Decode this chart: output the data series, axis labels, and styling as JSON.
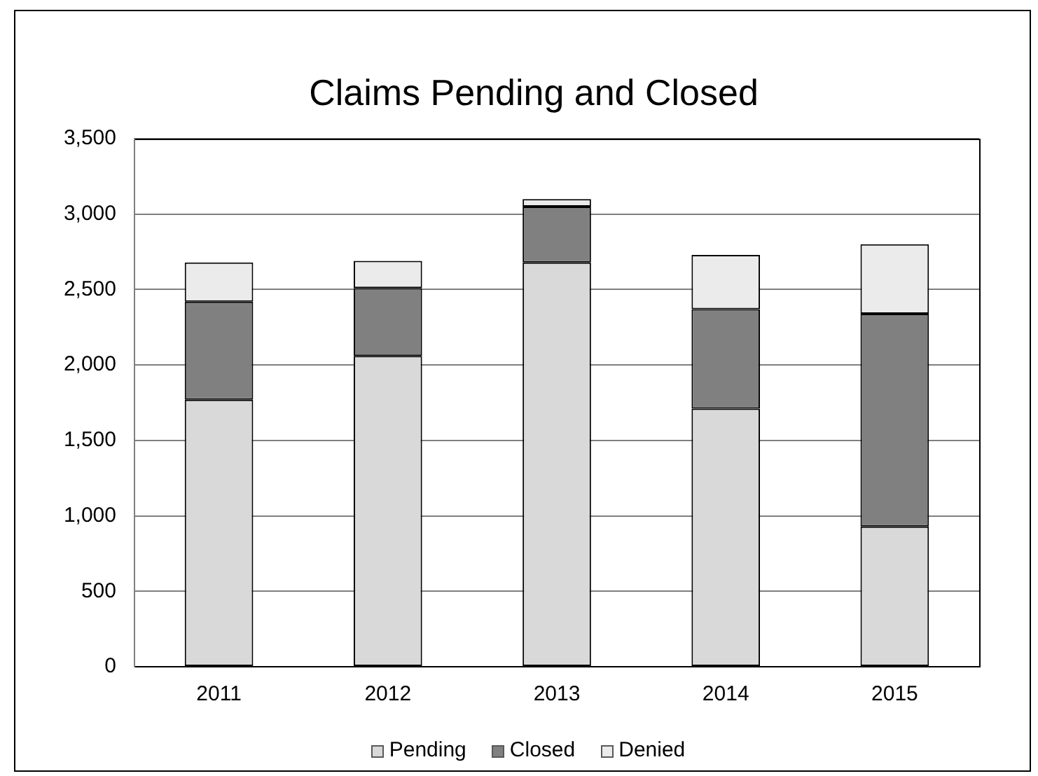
{
  "chart_data": {
    "type": "bar",
    "title": "Claims Pending and Closed",
    "categories": [
      "2011",
      "2012",
      "2013",
      "2014",
      "2015"
    ],
    "series": [
      {
        "name": "Pending",
        "color": "#d9d9d9",
        "values": [
          1770,
          2060,
          2680,
          1710,
          930
        ]
      },
      {
        "name": "Closed",
        "color": "#808080",
        "values": [
          650,
          450,
          370,
          660,
          1410
        ]
      },
      {
        "name": "Denied",
        "color": "#ebebeb",
        "values": [
          260,
          180,
          50,
          360,
          460
        ]
      }
    ],
    "stacked": true,
    "ylim": [
      0,
      3500
    ],
    "yticks": [
      0,
      500,
      {
        "value": 1000,
        "label": "1,000"
      },
      {
        "value": 1500,
        "label": "1,500"
      },
      {
        "value": 2000,
        "label": "2,000"
      },
      {
        "value": 2500,
        "label": "2,500"
      },
      {
        "value": 3000,
        "label": "3,000"
      },
      {
        "value": 3500,
        "label": "3,500"
      }
    ],
    "grid": "y",
    "legend": "bottom"
  }
}
